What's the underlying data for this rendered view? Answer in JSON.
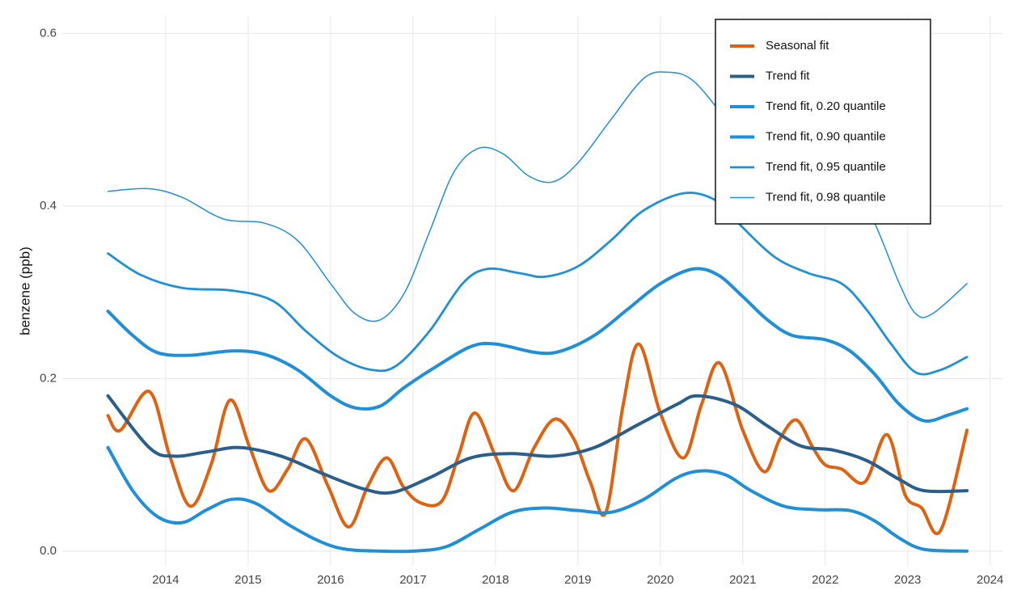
{
  "chart_data": {
    "type": "line",
    "y_label": "benzene (ppb)",
    "xlim": [
      2012.75,
      2024.15
    ],
    "xticks": [
      2014,
      2015,
      2016,
      2017,
      2018,
      2019,
      2020,
      2021,
      2022,
      2023,
      2024
    ],
    "ylim": [
      -0.017,
      0.62
    ],
    "yticks": [
      {
        "value": 0,
        "label": "0.0"
      },
      0.2,
      0.4,
      0.6
    ],
    "grid": true,
    "legend": "top-right",
    "series": [
      {
        "name": "Seasonal fit",
        "color": "#de6210",
        "line_width": 4,
        "x": [
          2013.3,
          2013.45,
          2013.8,
          2014.05,
          2014.3,
          2014.55,
          2014.78,
          2015.02,
          2015.25,
          2015.48,
          2015.7,
          2015.97,
          2016.22,
          2016.45,
          2016.68,
          2016.88,
          2017.09,
          2017.35,
          2017.55,
          2017.75,
          2018.0,
          2018.22,
          2018.47,
          2018.72,
          2018.95,
          2019.15,
          2019.34,
          2019.55,
          2019.74,
          2020.0,
          2020.28,
          2020.5,
          2020.72,
          2021.0,
          2021.26,
          2021.45,
          2021.65,
          2021.85,
          2022.0,
          2022.2,
          2022.48,
          2022.75,
          2022.97,
          2023.17,
          2023.4,
          2023.72
        ],
        "values": [
          0.157,
          0.14,
          0.185,
          0.11,
          0.052,
          0.1,
          0.175,
          0.12,
          0.07,
          0.095,
          0.13,
          0.075,
          0.028,
          0.075,
          0.108,
          0.075,
          0.056,
          0.058,
          0.11,
          0.16,
          0.11,
          0.07,
          0.12,
          0.153,
          0.13,
          0.08,
          0.045,
          0.17,
          0.24,
          0.16,
          0.108,
          0.17,
          0.218,
          0.14,
          0.092,
          0.13,
          0.152,
          0.12,
          0.1,
          0.095,
          0.08,
          0.135,
          0.065,
          0.05,
          0.024,
          0.14
        ]
      },
      {
        "name": "Trend fit",
        "color": "#2b5f8b",
        "line_width": 4,
        "x": [
          2013.3,
          2013.8,
          2014.1,
          2014.5,
          2014.9,
          2015.4,
          2015.9,
          2016.4,
          2016.75,
          2017.2,
          2017.7,
          2018.2,
          2018.7,
          2019.2,
          2019.7,
          2020.2,
          2020.45,
          2020.9,
          2021.3,
          2021.7,
          2022.1,
          2022.5,
          2022.9,
          2023.2,
          2023.72
        ],
        "values": [
          0.18,
          0.12,
          0.11,
          0.115,
          0.12,
          0.11,
          0.09,
          0.072,
          0.068,
          0.085,
          0.108,
          0.113,
          0.11,
          0.12,
          0.145,
          0.17,
          0.18,
          0.17,
          0.145,
          0.122,
          0.117,
          0.105,
          0.083,
          0.07,
          0.07
        ]
      },
      {
        "name": "Trend fit, 0.20 quantile",
        "color": "#1f8fd8",
        "line_width": 4,
        "x": [
          2013.3,
          2013.6,
          2013.9,
          2014.2,
          2014.5,
          2014.8,
          2015.1,
          2015.5,
          2015.9,
          2016.2,
          2016.6,
          2017.0,
          2017.4,
          2017.8,
          2018.2,
          2018.6,
          2019.0,
          2019.4,
          2019.8,
          2020.2,
          2020.5,
          2020.8,
          2021.1,
          2021.5,
          2021.9,
          2022.3,
          2022.6,
          2022.9,
          2023.2,
          2023.72
        ],
        "values": [
          0.12,
          0.07,
          0.04,
          0.033,
          0.048,
          0.06,
          0.055,
          0.03,
          0.01,
          0.002,
          0.0,
          0.0,
          0.005,
          0.025,
          0.045,
          0.05,
          0.047,
          0.045,
          0.06,
          0.085,
          0.093,
          0.088,
          0.07,
          0.052,
          0.048,
          0.047,
          0.035,
          0.015,
          0.002,
          0.0
        ]
      },
      {
        "name": "Trend fit, 0.90 quantile",
        "color": "#1f8fd8",
        "line_width": 4,
        "x": [
          2013.3,
          2013.6,
          2013.9,
          2014.3,
          2014.8,
          2015.2,
          2015.6,
          2016.0,
          2016.3,
          2016.6,
          2016.9,
          2017.3,
          2017.7,
          2018.0,
          2018.5,
          2018.8,
          2019.2,
          2019.6,
          2020.0,
          2020.4,
          2020.7,
          2021.0,
          2021.3,
          2021.6,
          2022.0,
          2022.3,
          2022.6,
          2022.9,
          2023.2,
          2023.5,
          2023.72
        ],
        "values": [
          0.278,
          0.25,
          0.23,
          0.227,
          0.232,
          0.228,
          0.21,
          0.18,
          0.166,
          0.168,
          0.19,
          0.215,
          0.237,
          0.24,
          0.23,
          0.232,
          0.25,
          0.28,
          0.31,
          0.327,
          0.32,
          0.295,
          0.268,
          0.25,
          0.245,
          0.232,
          0.205,
          0.17,
          0.151,
          0.158,
          0.165
        ]
      },
      {
        "name": "Trend fit, 0.95 quantile",
        "color": "#1f8fd8",
        "line_width": 2.8,
        "x": [
          2013.3,
          2013.7,
          2014.2,
          2014.8,
          2015.3,
          2015.7,
          2016.1,
          2016.5,
          2016.8,
          2017.2,
          2017.6,
          2017.9,
          2018.3,
          2018.6,
          2019.0,
          2019.4,
          2019.8,
          2020.3,
          2020.7,
          2021.0,
          2021.4,
          2021.8,
          2022.2,
          2022.5,
          2022.8,
          2023.1,
          2023.4,
          2023.72
        ],
        "values": [
          0.345,
          0.32,
          0.305,
          0.302,
          0.29,
          0.255,
          0.225,
          0.21,
          0.215,
          0.255,
          0.31,
          0.327,
          0.322,
          0.318,
          0.33,
          0.36,
          0.395,
          0.415,
          0.405,
          0.375,
          0.34,
          0.322,
          0.31,
          0.28,
          0.24,
          0.207,
          0.21,
          0.225
        ]
      },
      {
        "name": "Trend fit, 0.98 quantile",
        "color": "#1f8fd8",
        "line_width": 1.5,
        "x": [
          2013.3,
          2013.8,
          2014.2,
          2014.7,
          2015.2,
          2015.6,
          2016.0,
          2016.3,
          2016.6,
          2016.9,
          2017.2,
          2017.5,
          2017.8,
          2018.1,
          2018.4,
          2018.7,
          2019.0,
          2019.4,
          2019.8,
          2020.1,
          2020.4,
          2020.8,
          2021.1,
          2021.5,
          2021.9,
          2022.3,
          2022.6,
          2022.9,
          2023.1,
          2023.3,
          2023.72
        ],
        "values": [
          0.417,
          0.42,
          0.41,
          0.385,
          0.38,
          0.36,
          0.31,
          0.275,
          0.268,
          0.3,
          0.37,
          0.44,
          0.467,
          0.46,
          0.435,
          0.428,
          0.45,
          0.5,
          0.548,
          0.555,
          0.545,
          0.5,
          0.465,
          0.44,
          0.435,
          0.43,
          0.38,
          0.31,
          0.275,
          0.275,
          0.31
        ]
      }
    ]
  }
}
